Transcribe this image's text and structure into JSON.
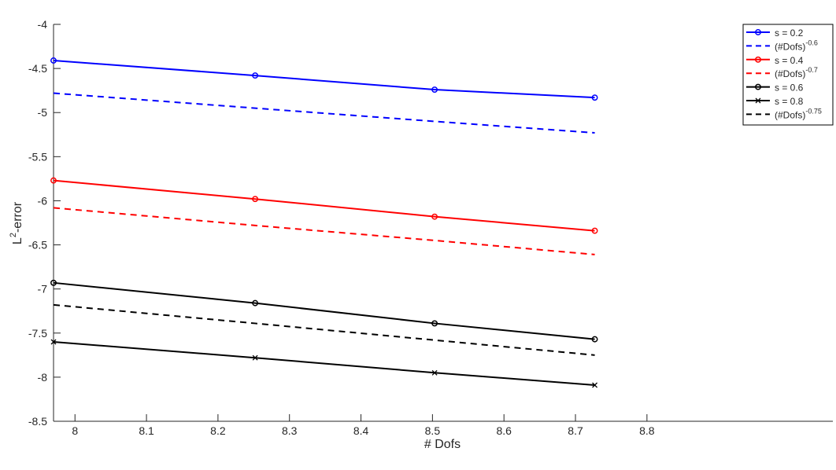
{
  "chart_data": {
    "type": "line",
    "title": "",
    "xlabel": "# Dofs",
    "ylabel": {
      "base": "L",
      "sup": "2",
      "rest": "-error"
    },
    "xlim": [
      7.97,
      9.06
    ],
    "ylim": [
      -8.5,
      -4
    ],
    "xticks": [
      8,
      8.1,
      8.2,
      8.3,
      8.4,
      8.5,
      8.6,
      8.7,
      8.8
    ],
    "xtick_labels": [
      "8",
      "8.1",
      "8.2",
      "8.3",
      "8.4",
      "8.5",
      "8.6",
      "8.7",
      "8.8"
    ],
    "yticks": [
      -8.5,
      -8,
      -7.5,
      -7,
      -6.5,
      -6,
      -5.5,
      -5,
      -4.5,
      -4
    ],
    "ytick_labels": [
      "-8.5",
      "-8",
      "-7.5",
      "-7",
      "-6.5",
      "-6",
      "-5.5",
      "-5",
      "-4.5",
      "-4"
    ],
    "grid": false,
    "legend_placement": "top-right",
    "x": [
      7.97,
      8.252,
      8.503,
      8.727
    ],
    "series": [
      {
        "name": "s = 0.2",
        "color": "#0000ff",
        "dash": "solid",
        "marker": "circle",
        "values": [
          -4.41,
          -4.58,
          -4.74,
          -4.83
        ]
      },
      {
        "name_base": "(#Dofs)",
        "name_sup": "-0.6",
        "color": "#0000ff",
        "dash": "dashed",
        "marker": "none",
        "values": [
          -4.78,
          -4.95,
          -5.1,
          -5.23
        ]
      },
      {
        "name": "s = 0.4",
        "color": "#ff0000",
        "dash": "solid",
        "marker": "circle",
        "values": [
          -5.77,
          -5.98,
          -6.18,
          -6.34
        ]
      },
      {
        "name_base": "(#Dofs)",
        "name_sup": "-0.7",
        "color": "#ff0000",
        "dash": "dashed",
        "marker": "none",
        "values": [
          -6.08,
          -6.28,
          -6.45,
          -6.61
        ]
      },
      {
        "name": "s = 0.6",
        "color": "#000000",
        "dash": "solid",
        "marker": "circle",
        "values": [
          -6.93,
          -7.16,
          -7.39,
          -7.57
        ]
      },
      {
        "name": "s = 0.8",
        "color": "#000000",
        "dash": "solid",
        "marker": "x",
        "values": [
          -7.6,
          -7.78,
          -7.95,
          -8.09
        ]
      },
      {
        "name_base": "(#Dofs)",
        "name_sup": "-0.75",
        "color": "#000000",
        "dash": "dashed",
        "marker": "none",
        "values": [
          -7.18,
          -7.39,
          -7.58,
          -7.75
        ]
      }
    ]
  }
}
